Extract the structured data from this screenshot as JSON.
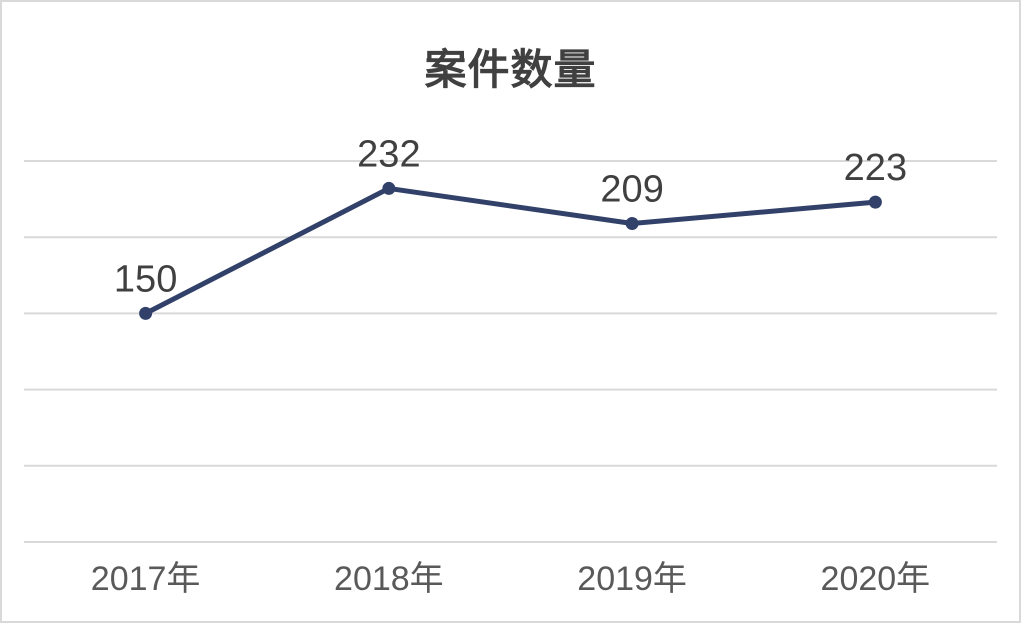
{
  "chart_data": {
    "type": "line",
    "title": "案件数量",
    "categories": [
      "2017年",
      "2018年",
      "2019年",
      "2020年"
    ],
    "series": [
      {
        "name": "案件数量",
        "values": [
          150,
          232,
          209,
          223
        ]
      }
    ],
    "data_labels": [
      "150",
      "232",
      "209",
      "223"
    ],
    "xlabel": "",
    "ylabel": "",
    "ylim": [
      0,
      250
    ],
    "y_grid_step": 50,
    "grid": true,
    "legend": false,
    "y_tick_labels_visible": false,
    "data_label_position": "above",
    "colors": {
      "line": "#324169",
      "marker": "#324169",
      "gridline": "#d9d9d9",
      "data_label": "#404040",
      "axis_label": "#595959",
      "title": "#404040",
      "background": "#ffffff",
      "border": "#d9d9d9"
    }
  }
}
